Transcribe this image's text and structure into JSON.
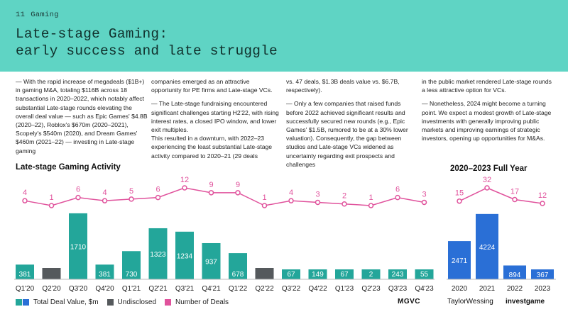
{
  "header": {
    "page_number": "11",
    "section": "Gaming",
    "title_line1": "Late-stage Gaming:",
    "title_line2": "early success and late struggle"
  },
  "body": {
    "col1": "— With the rapid increase of megadeals ($1B+) in gaming M&A, totaling $116B across 18 transactions in 2020–2022, which notably affect substantial Late-stage rounds elevating the overall deal value — such as Epic Games' $4.8B (2020–22), Roblox's $670m (2020–2021), Scopely's $540m (2020), and Dream Games' $460m (2021–22) — investing in Late-stage gaming",
    "col2_p1": "companies emerged as an attractive opportunity for PE firms and Late-stage VCs.",
    "col2_p2": "— The Late-stage fundraising encountered significant challenges starting H2'22, with rising interest rates, a closed IPO window, and lower exit multiples.",
    "col2_p3": "This resulted in a downturn, with 2022–23 experiencing the least substantial Late-stage activity compared to 2020–21 (29 deals",
    "col3_p1": "vs. 47 deals, $1.3B deals value vs. $6.7B, respectively).",
    "col3_p2": "— Only a few companies that raised funds before 2022 achieved significant results and successfully secured new rounds (e.g., Epic Games' $1.5B, rumored to be at a 30% lower valuation). Consequently, the gap between studios and Late-stage VCs widened as uncertainty regarding exit prospects and challenges",
    "col4_p1": "in the public market rendered Late-stage rounds a less attractive option for VCs.",
    "col4_p2": "— Nonetheless, 2024 might become a turning point. We expect a modest growth of Late-stage investments with generally improving public markets and improving earnings of strategic investors, opening up opportunities for M&As."
  },
  "colors": {
    "header_bg": "#5fd4c4",
    "teal": "#23a69a",
    "blue": "#2a6fd6",
    "gray": "#55595c",
    "pink": "#e0529c"
  },
  "chart_data": [
    {
      "type": "bar",
      "title": "Late-stage Gaming Activity",
      "categories": [
        "Q1'20",
        "Q2'20",
        "Q3'20",
        "Q4'20",
        "Q1'21",
        "Q2'21",
        "Q3'21",
        "Q4'21",
        "Q1'22",
        "Q2'22",
        "Q3'22",
        "Q4'22",
        "Q1'23",
        "Q2'23",
        "Q3'23",
        "Q4'23"
      ],
      "series": [
        {
          "name": "Total Deal Value, $m",
          "kind": "bar",
          "values": [
            381,
            null,
            1710,
            381,
            730,
            1323,
            1234,
            937,
            678,
            null,
            67,
            149,
            67,
            2,
            243,
            55
          ]
        },
        {
          "name": "Undisclosed",
          "kind": "bar",
          "undisclosed": [
            false,
            true,
            false,
            false,
            false,
            false,
            false,
            false,
            false,
            true,
            false,
            false,
            false,
            false,
            false,
            false
          ]
        },
        {
          "name": "Number of Deals",
          "kind": "line",
          "values": [
            4,
            1,
            6,
            4,
            5,
            6,
            12,
            9,
            9,
            1,
            4,
            3,
            2,
            1,
            6,
            3
          ]
        }
      ],
      "value_labels": [
        "381",
        "",
        "1710",
        "381",
        "730",
        "1323",
        "1234",
        "937",
        "678",
        "",
        "67",
        "149",
        "67",
        "2",
        "243",
        "55"
      ],
      "ylim_bars": [
        0,
        1800
      ],
      "ylim_deals": [
        0,
        12
      ]
    },
    {
      "type": "bar",
      "title": "2020–2023 Full Year",
      "categories": [
        "2020",
        "2021",
        "2022",
        "2023"
      ],
      "series": [
        {
          "name": "Total Deal Value, $m",
          "kind": "bar",
          "values": [
            2471,
            4224,
            894,
            367
          ]
        },
        {
          "name": "Number of Deals",
          "kind": "line",
          "values": [
            15,
            32,
            17,
            12
          ]
        }
      ],
      "value_labels": [
        "2471",
        "4224",
        "894",
        "367"
      ],
      "ylim_bars": [
        0,
        4400
      ],
      "ylim_deals": [
        0,
        32
      ]
    }
  ],
  "legend": {
    "value_label": "Total Deal Value, $m",
    "undisclosed_label": "Undisclosed",
    "deals_label": "Number of Deals"
  },
  "footer": {
    "logo1": "MGVC",
    "logo2": "TaylorWessing",
    "logo3": "investgame"
  }
}
